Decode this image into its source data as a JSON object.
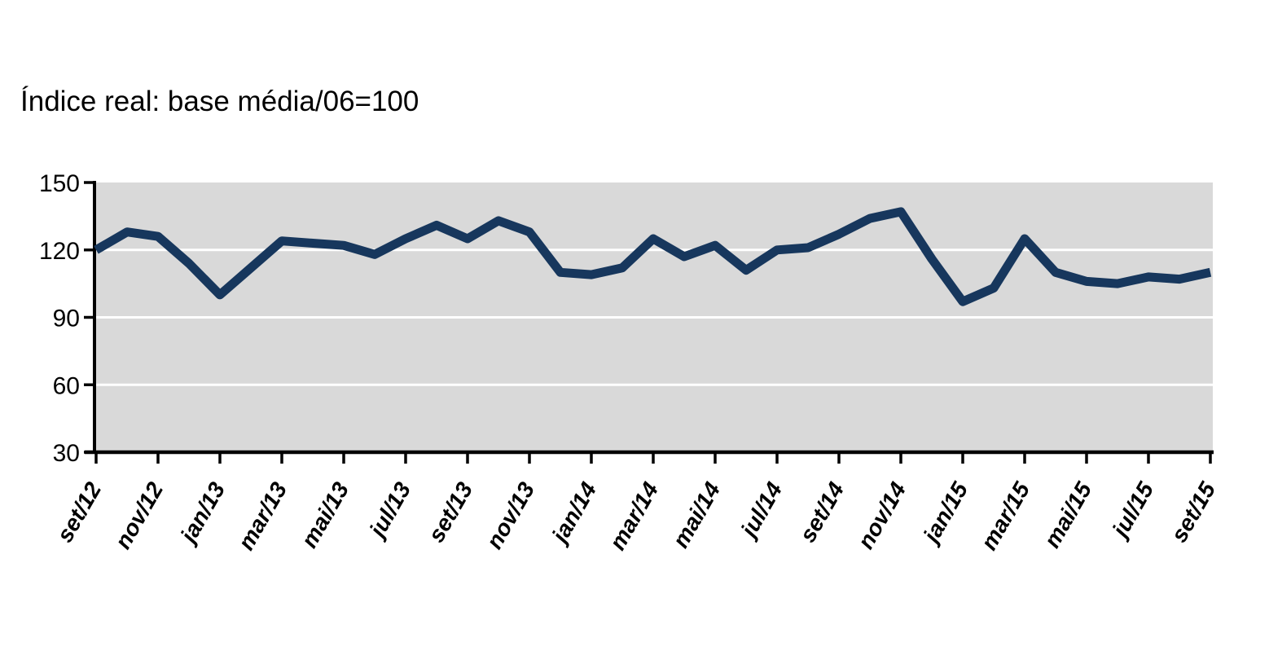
{
  "chart_data": {
    "type": "line",
    "title": "Índice real: base média/06=100",
    "xlabel": "",
    "ylabel": "",
    "ylim": [
      30,
      150
    ],
    "y_ticks": [
      30,
      60,
      90,
      120,
      150
    ],
    "gridlines": {
      "orientation": "horizontal",
      "at_values": [
        60,
        90,
        120
      ],
      "color": "#FFFFFF"
    },
    "legend": "none",
    "x_tick_labels": [
      "set/12",
      "nov/12",
      "jan/13",
      "mar/13",
      "mai/13",
      "jul/13",
      "set/13",
      "nov/13",
      "jan/14",
      "mar/14",
      "mai/14",
      "jul/14",
      "set/14",
      "nov/14",
      "jan/15",
      "mar/15",
      "mai/15",
      "jul/15",
      "set/15"
    ],
    "x": [
      "set/12",
      "out/12",
      "nov/12",
      "dez/12",
      "jan/13",
      "fev/13",
      "mar/13",
      "abr/13",
      "mai/13",
      "jun/13",
      "jul/13",
      "ago/13",
      "set/13",
      "out/13",
      "nov/13",
      "dez/13",
      "jan/14",
      "fev/14",
      "mar/14",
      "abr/14",
      "mai/14",
      "jun/14",
      "jul/14",
      "ago/14",
      "set/14",
      "out/14",
      "nov/14",
      "dez/14",
      "jan/15",
      "fev/15",
      "mar/15",
      "abr/15",
      "mai/15",
      "jun/15",
      "jul/15",
      "ago/15",
      "set/15"
    ],
    "series": [
      {
        "name": "Índice real",
        "values": [
          120,
          128,
          126,
          114,
          100,
          112,
          124,
          123,
          122,
          118,
          125,
          131,
          125,
          133,
          128,
          110,
          109,
          112,
          125,
          117,
          122,
          111,
          120,
          121,
          127,
          134,
          137,
          116,
          97,
          103,
          125,
          110,
          106,
          105,
          108,
          107,
          110
        ]
      }
    ],
    "colors": {
      "line": "#17375D",
      "plot_background": "#D9D9D9",
      "gridline": "#FFFFFF",
      "axis": "#000000",
      "page_background": "#FFFFFF"
    }
  }
}
